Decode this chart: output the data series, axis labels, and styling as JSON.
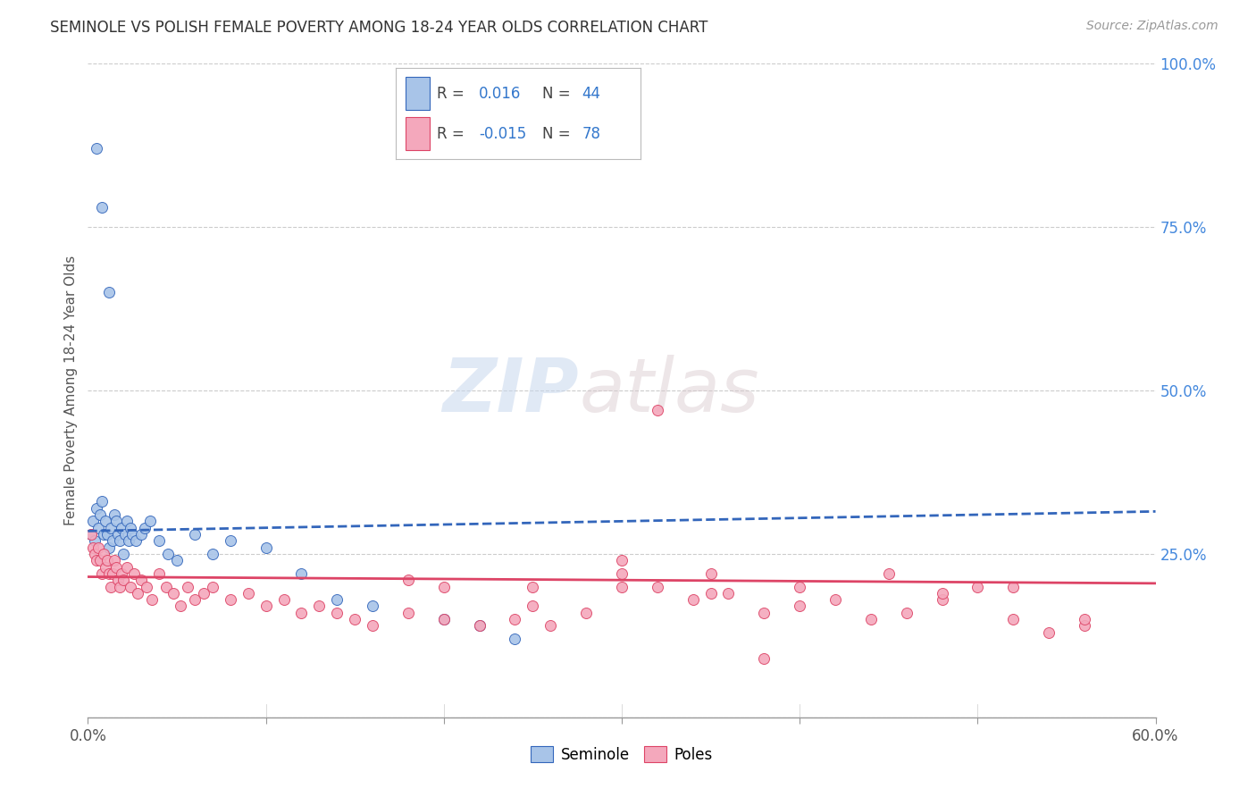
{
  "title": "SEMINOLE VS POLISH FEMALE POVERTY AMONG 18-24 YEAR OLDS CORRELATION CHART",
  "source": "Source: ZipAtlas.com",
  "ylabel": "Female Poverty Among 18-24 Year Olds",
  "xlim": [
    0.0,
    0.6
  ],
  "ylim": [
    0.0,
    1.0
  ],
  "xticks": [
    0.0,
    0.1,
    0.2,
    0.3,
    0.4,
    0.5,
    0.6
  ],
  "xticklabels": [
    "0.0%",
    "",
    "",
    "",
    "",
    "",
    "60.0%"
  ],
  "yticks_right": [
    0.0,
    0.25,
    0.5,
    0.75,
    1.0
  ],
  "yticklabels_right": [
    "",
    "25.0%",
    "50.0%",
    "75.0%",
    "100.0%"
  ],
  "seminole_color": "#a8c4e8",
  "poles_color": "#f4a8bc",
  "seminole_trend_color": "#3366bb",
  "poles_trend_color": "#dd4466",
  "background_color": "#ffffff",
  "grid_color": "#cccccc",
  "watermark_zip": "ZIP",
  "watermark_atlas": "atlas",
  "seminole_x": [
    0.002,
    0.003,
    0.004,
    0.005,
    0.006,
    0.007,
    0.008,
    0.009,
    0.01,
    0.011,
    0.012,
    0.013,
    0.014,
    0.015,
    0.016,
    0.017,
    0.018,
    0.019,
    0.02,
    0.021,
    0.022,
    0.023,
    0.024,
    0.025,
    0.027,
    0.03,
    0.032,
    0.035,
    0.04,
    0.045,
    0.05,
    0.06,
    0.07,
    0.08,
    0.1,
    0.12,
    0.14,
    0.16,
    0.2,
    0.22,
    0.24,
    0.005,
    0.008,
    0.012
  ],
  "seminole_y": [
    0.28,
    0.3,
    0.27,
    0.32,
    0.29,
    0.31,
    0.33,
    0.28,
    0.3,
    0.28,
    0.26,
    0.29,
    0.27,
    0.31,
    0.3,
    0.28,
    0.27,
    0.29,
    0.25,
    0.28,
    0.3,
    0.27,
    0.29,
    0.28,
    0.27,
    0.28,
    0.29,
    0.3,
    0.27,
    0.25,
    0.24,
    0.28,
    0.25,
    0.27,
    0.26,
    0.22,
    0.18,
    0.17,
    0.15,
    0.14,
    0.12,
    0.87,
    0.78,
    0.65
  ],
  "poles_x": [
    0.002,
    0.003,
    0.004,
    0.005,
    0.006,
    0.007,
    0.008,
    0.009,
    0.01,
    0.011,
    0.012,
    0.013,
    0.014,
    0.015,
    0.016,
    0.017,
    0.018,
    0.019,
    0.02,
    0.022,
    0.024,
    0.026,
    0.028,
    0.03,
    0.033,
    0.036,
    0.04,
    0.044,
    0.048,
    0.052,
    0.056,
    0.06,
    0.065,
    0.07,
    0.08,
    0.09,
    0.1,
    0.11,
    0.12,
    0.13,
    0.14,
    0.15,
    0.16,
    0.18,
    0.2,
    0.22,
    0.24,
    0.26,
    0.28,
    0.3,
    0.32,
    0.34,
    0.36,
    0.38,
    0.4,
    0.42,
    0.44,
    0.46,
    0.48,
    0.5,
    0.52,
    0.54,
    0.56,
    0.4,
    0.45,
    0.48,
    0.52,
    0.56,
    0.3,
    0.35,
    0.25,
    0.3,
    0.35,
    0.25,
    0.2,
    0.18,
    0.32,
    0.38
  ],
  "poles_y": [
    0.28,
    0.26,
    0.25,
    0.24,
    0.26,
    0.24,
    0.22,
    0.25,
    0.23,
    0.24,
    0.22,
    0.2,
    0.22,
    0.24,
    0.23,
    0.21,
    0.2,
    0.22,
    0.21,
    0.23,
    0.2,
    0.22,
    0.19,
    0.21,
    0.2,
    0.18,
    0.22,
    0.2,
    0.19,
    0.17,
    0.2,
    0.18,
    0.19,
    0.2,
    0.18,
    0.19,
    0.17,
    0.18,
    0.16,
    0.17,
    0.16,
    0.15,
    0.14,
    0.16,
    0.15,
    0.14,
    0.15,
    0.14,
    0.16,
    0.22,
    0.2,
    0.18,
    0.19,
    0.16,
    0.17,
    0.18,
    0.15,
    0.16,
    0.18,
    0.2,
    0.15,
    0.13,
    0.14,
    0.2,
    0.22,
    0.19,
    0.2,
    0.15,
    0.2,
    0.22,
    0.2,
    0.24,
    0.19,
    0.17,
    0.2,
    0.21,
    0.47,
    0.09
  ]
}
